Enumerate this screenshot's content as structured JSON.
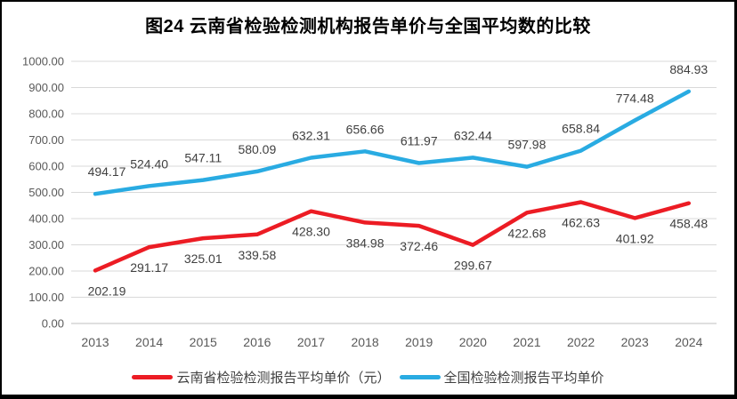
{
  "title": "图24  云南省检验检测机构报告单价与全国平均数的比较",
  "colors": {
    "yunnan_red": "#EC1C24",
    "national_blue": "#29ABE2",
    "gridline": "#D9D9D9",
    "axis_line": "#BFBFBF",
    "tick_text": "#595959",
    "label_text": "#404040"
  },
  "chart_data": {
    "type": "line",
    "title": "图24  云南省检验检测机构报告单价与全国平均数的比较",
    "categories": [
      "2013",
      "2014",
      "2015",
      "2016",
      "2017",
      "2018",
      "2019",
      "2020",
      "2021",
      "2022",
      "2023",
      "2024"
    ],
    "series": [
      {
        "key": "yunnan",
        "name": "云南省检验检测报告平均单价（元）",
        "color": "#EC1C24",
        "values": [
          202.19,
          291.17,
          325.01,
          339.58,
          428.3,
          384.98,
          372.46,
          299.67,
          422.68,
          462.63,
          401.92,
          458.48
        ],
        "labels": [
          "202.19",
          "291.17",
          "325.01",
          "339.58",
          "428.30",
          "384.98",
          "372.46",
          "299.67",
          "422.68",
          "462.63",
          "401.92",
          "458.48"
        ]
      },
      {
        "key": "national",
        "name": "全国检验检测报告平均单价",
        "color": "#29ABE2",
        "values": [
          494.17,
          524.4,
          547.11,
          580.09,
          632.31,
          656.66,
          611.97,
          632.44,
          597.98,
          658.84,
          774.48,
          884.93
        ],
        "labels": [
          "494.17",
          "524.40",
          "547.11",
          "580.09",
          "632.31",
          "656.66",
          "611.97",
          "632.44",
          "597.98",
          "658.84",
          "774.48",
          "884.93"
        ]
      }
    ],
    "xlabel": "",
    "ylabel": "",
    "ylim": [
      0,
      1000
    ],
    "ytick_step": 100,
    "ytick_labels": [
      "0.00",
      "100.00",
      "200.00",
      "300.00",
      "400.00",
      "500.00",
      "600.00",
      "700.00",
      "800.00",
      "900.00",
      "1000.00"
    ],
    "grid": true,
    "legend_position": "bottom"
  }
}
